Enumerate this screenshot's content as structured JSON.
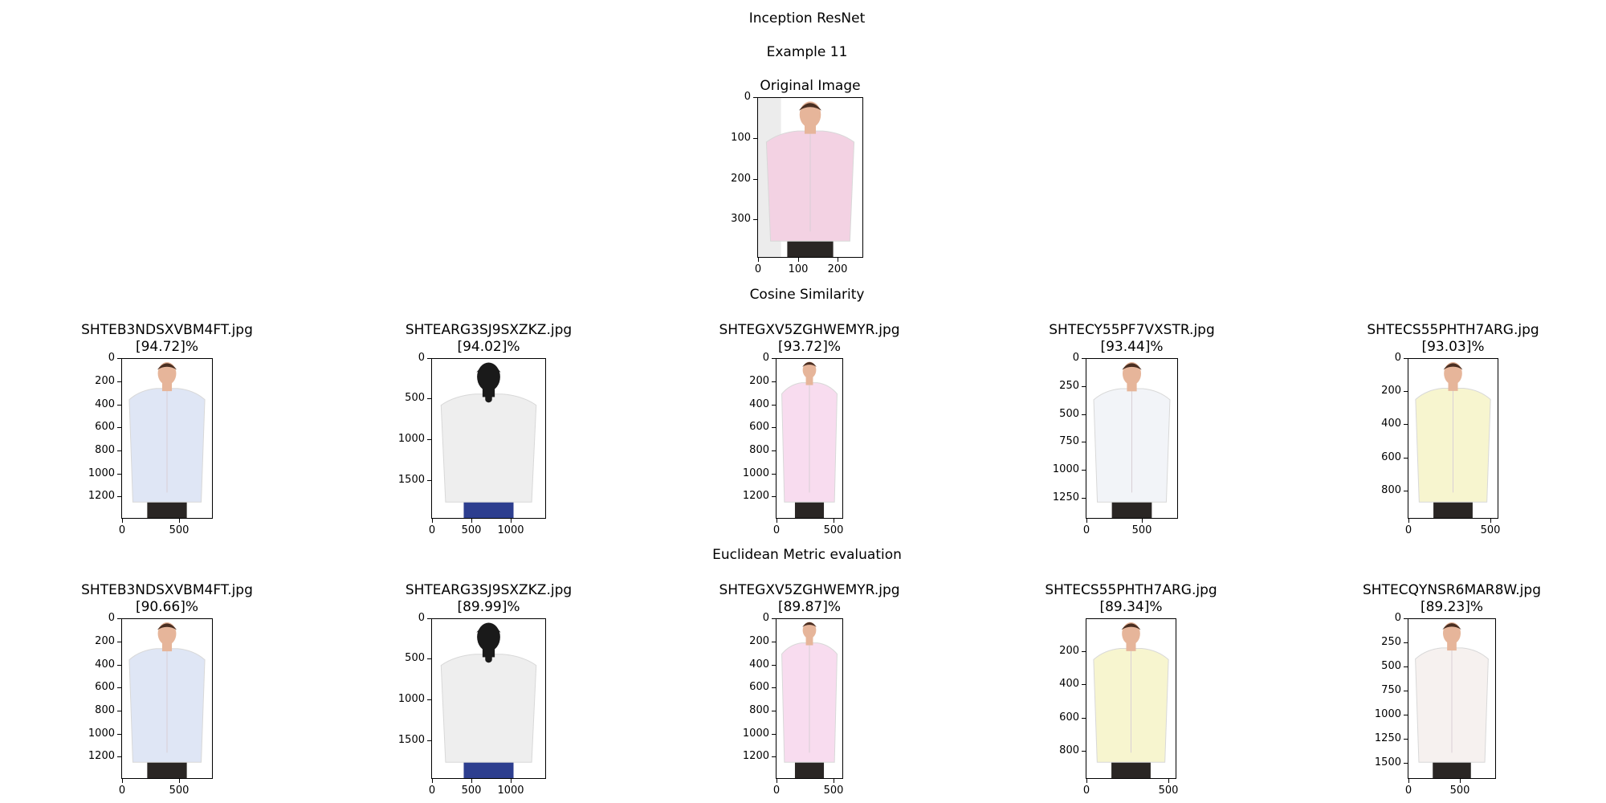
{
  "suptitle": "Inception ResNet",
  "example_label": "Example 11",
  "section_cosine": "Cosine Similarity",
  "section_euclid": "Euclidean Metric evaluation",
  "chart_data": [
    {
      "type": "image",
      "title": "Original Image",
      "shirt_color": "#f3d2e3",
      "xticks": [
        "0",
        "100",
        "200"
      ],
      "yticks": [
        "0",
        "100",
        "200",
        "300"
      ]
    },
    {
      "type": "image",
      "group": "Cosine Similarity",
      "file": "SHTEB3NDSXVBM4FT.jpg",
      "score": "[94.72]%",
      "shirt_color": "#dfe6f5",
      "xticks": [
        "0",
        "500"
      ],
      "yticks": [
        "0",
        "200",
        "400",
        "600",
        "800",
        "1000",
        "1200"
      ]
    },
    {
      "type": "image",
      "group": "Cosine Similarity",
      "file": "SHTEARG3SJ9SXZKZ.jpg",
      "score": "[94.02]%",
      "shirt_color": "#eeeeee",
      "xticks": [
        "0",
        "500",
        "1000"
      ],
      "yticks": [
        "0",
        "500",
        "1000",
        "1500"
      ]
    },
    {
      "type": "image",
      "group": "Cosine Similarity",
      "file": "SHTEGXV5ZGHWEMYR.jpg",
      "score": "[93.72]%",
      "shirt_color": "#f8dcef",
      "xticks": [
        "0",
        "500"
      ],
      "yticks": [
        "0",
        "200",
        "400",
        "600",
        "800",
        "1000",
        "1200"
      ]
    },
    {
      "type": "image",
      "group": "Cosine Similarity",
      "file": "SHTECY55PF7VXSTR.jpg",
      "score": "[93.44]%",
      "shirt_color": "#f2f4f8",
      "xticks": [
        "0",
        "500"
      ],
      "yticks": [
        "0",
        "250",
        "500",
        "750",
        "1000",
        "1250"
      ]
    },
    {
      "type": "image",
      "group": "Cosine Similarity",
      "file": "SHTECS55PHTH7ARG.jpg",
      "score": "[93.03]%",
      "shirt_color": "#f7f5cf",
      "xticks": [
        "0",
        "500"
      ],
      "yticks": [
        "0",
        "200",
        "400",
        "600",
        "800"
      ]
    },
    {
      "type": "image",
      "group": "Euclidean Metric evaluation",
      "file": "SHTEB3NDSXVBM4FT.jpg",
      "score": "[90.66]%",
      "shirt_color": "#dfe6f5",
      "xticks": [
        "0",
        "500"
      ],
      "yticks": [
        "0",
        "200",
        "400",
        "600",
        "800",
        "1000",
        "1200"
      ]
    },
    {
      "type": "image",
      "group": "Euclidean Metric evaluation",
      "file": "SHTEARG3SJ9SXZKZ.jpg",
      "score": "[89.99]%",
      "shirt_color": "#eeeeee",
      "xticks": [
        "0",
        "500",
        "1000"
      ],
      "yticks": [
        "0",
        "500",
        "1000",
        "1500"
      ]
    },
    {
      "type": "image",
      "group": "Euclidean Metric evaluation",
      "file": "SHTEGXV5ZGHWEMYR.jpg",
      "score": "[89.87]%",
      "shirt_color": "#f8dcef",
      "xticks": [
        "0",
        "500"
      ],
      "yticks": [
        "0",
        "200",
        "400",
        "600",
        "800",
        "1000",
        "1200"
      ]
    },
    {
      "type": "image",
      "group": "Euclidean Metric evaluation",
      "file": "SHTECS55PHTH7ARG.jpg",
      "score": "[89.34]%",
      "shirt_color": "#f7f5cf",
      "xticks": [
        "0",
        "500"
      ],
      "yticks": [
        "200",
        "400",
        "600",
        "800"
      ]
    },
    {
      "type": "image",
      "group": "Euclidean Metric evaluation",
      "file": "SHTECQYNSR6MAR8W.jpg",
      "score": "[89.23]%",
      "shirt_color": "#f6f1ef",
      "xticks": [
        "0",
        "500"
      ],
      "yticks": [
        "0",
        "250",
        "500",
        "750",
        "1000",
        "1250",
        "1500"
      ]
    }
  ]
}
